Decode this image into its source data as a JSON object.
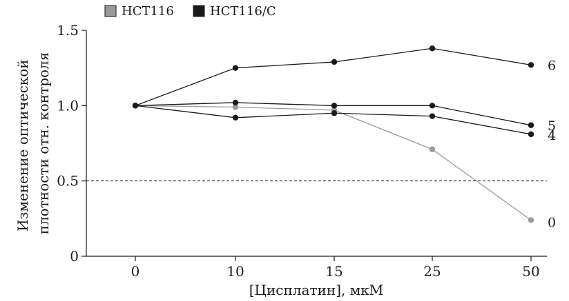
{
  "chart_data": {
    "type": "line",
    "categories": [
      "0",
      "10",
      "15",
      "25",
      "50"
    ],
    "xlabel": "[Цисплатин], мкМ",
    "ylabel_lines": [
      "Изменение оптической",
      "плотности отн. контроля"
    ],
    "ylim": [
      0,
      1.5
    ],
    "yticks": [
      "0",
      "0.5",
      "1.0",
      "1.5"
    ],
    "legend": [
      {
        "label": "HCT116",
        "color": "#9a9a9a"
      },
      {
        "label": "HCT116/C",
        "color": "#1a1a1a"
      }
    ],
    "legend_position": "top-left",
    "threshold": 0.5,
    "series": [
      {
        "name": "0",
        "group": "HCT116",
        "color": "#9a9a9a",
        "values": [
          1.0,
          0.99,
          0.97,
          0.71,
          0.24
        ]
      },
      {
        "name": "4",
        "group": "HCT116/C",
        "color": "#1a1a1a",
        "values": [
          1.0,
          0.92,
          0.95,
          0.93,
          0.81
        ]
      },
      {
        "name": "5",
        "group": "HCT116/C",
        "color": "#1a1a1a",
        "values": [
          1.0,
          1.02,
          1.0,
          1.0,
          0.87
        ]
      },
      {
        "name": "6",
        "group": "HCT116/C",
        "color": "#1a1a1a",
        "values": [
          1.0,
          1.25,
          1.29,
          1.38,
          1.27
        ]
      }
    ]
  }
}
